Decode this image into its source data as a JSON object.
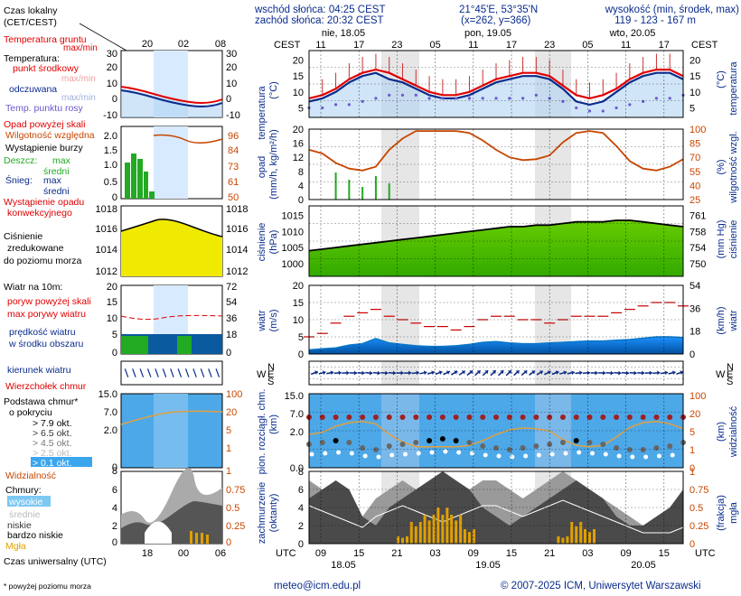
{
  "header": {
    "sunrise": "wschód słońca: 04:25 CEST",
    "sunset": "zachód słońca: 20:32 CEST",
    "coords": "21°45'E, 53°35'N",
    "grid": "(x=262,  y=366)",
    "altitude_title": "wysokość (min, środek, max)",
    "altitude_values": "119 - 123 - 167 m"
  },
  "legend": {
    "time_title": "Czas lokalny",
    "time_sub": "(CET/CEST)",
    "time_ticks": [
      "20",
      "02",
      "08"
    ],
    "utc_title": "Czas uniwersalny (UTC)",
    "utc_ticks": [
      "18",
      "00",
      "06"
    ],
    "temp_ground": "Temperatura gruntu",
    "temp_ground_sub": "max/min",
    "temp_title": "Temperatura:",
    "temp_mid": "punkt środkowy",
    "temp_mid_sub": "max/min",
    "temp_felt": "odczuwana",
    "temp_felt_sub": "max/min",
    "temp_dew": "Temp. punktu rosy",
    "temp_ticks": [
      "30",
      "20",
      "10",
      "0",
      "-10"
    ],
    "rain_over": "Opad powyżej skali",
    "humidity": "Wilgotność względna",
    "storm": "Wystąpienie burzy",
    "rain_title": "Deszcz:",
    "rain_max": "max",
    "rain_mean": "średni",
    "snow_title": "Śnieg:",
    "snow_max": "max",
    "snow_mean": "średni",
    "conv": "Wystąpienie opadu",
    "conv2": "konwekcyjnego",
    "precip_ticks": [
      "2.0",
      "1.5",
      "1.0",
      "0.5",
      "0"
    ],
    "hum_ticks": [
      "96",
      "84",
      "73",
      "61",
      "50"
    ],
    "pressure_title": "Ciśnienie",
    "pressure_sub1": "zredukowane",
    "pressure_sub2": "do poziomu morza",
    "pressure_ticks": [
      "1018",
      "1016",
      "1014",
      "1012"
    ],
    "wind_title": "Wiatr na 10m:",
    "wind_gust_over": "poryw powyżej skali",
    "wind_gust": "max porywy wiatru",
    "wind_speed": "prędkość wiatru",
    "wind_area": "w środku obszaru",
    "wind_ticks_l": [
      "20",
      "15",
      "10",
      "5",
      "0"
    ],
    "wind_ticks_r": [
      "72",
      "54",
      "36",
      "18",
      "0"
    ],
    "wind_dir": "kierunek wiatru",
    "vane": "Wierzchołek chmur",
    "cloud_base": "Podstawa chmur*",
    "cloud_base2": "o pokryciu",
    "okt79": "> 7.9 okt.",
    "okt65": "> 6.5 okt.",
    "okt45": "> 4.5 okt.",
    "okt25": "> 2.5 okt.",
    "okt01": "> 0.1 okt.",
    "visibility": "Widzialność",
    "base_ticks": [
      "15.0",
      "7.0",
      "2.0",
      "0"
    ],
    "vis_ticks": [
      "100",
      "20",
      "5",
      "1"
    ],
    "clouds_title": "Chmury:",
    "cloud_high": "wysokie",
    "cloud_mid": "średnie",
    "cloud_low": "niskie",
    "cloud_vlow": "bardzo niskie",
    "fog": "Mgła",
    "cloud_ticks": [
      "8",
      "6",
      "4",
      "2",
      "0"
    ],
    "fog_ticks": [
      "1",
      "0.75",
      "0.5",
      "0.25",
      "0"
    ],
    "footnote": "* powyżej poziomu morza"
  },
  "main": {
    "cest_label": "CEST",
    "utc_label": "UTC",
    "days_top": [
      "nie, 18.05",
      "pon, 19.05",
      "wto, 20.05"
    ],
    "hours_top": [
      "11",
      "17",
      "23",
      "05",
      "11",
      "17",
      "23",
      "05",
      "11",
      "17"
    ],
    "hours_bottom": [
      "09",
      "15",
      "21",
      "03",
      "09",
      "15",
      "21",
      "03",
      "09",
      "15"
    ],
    "days_bottom": [
      "18.05",
      "19.05",
      "20.05"
    ],
    "temp_axis": "temperatura",
    "temp_unit": "(°C)",
    "temp_ticks": [
      "20",
      "15",
      "10",
      "5"
    ],
    "precip_axis": "opad",
    "precip_unit": "(mm/h, kg/m²/h)",
    "precip_ticks": [
      "20",
      "16",
      "12",
      "8",
      "4",
      "0"
    ],
    "hum_axis": "wilgotność wzgl.",
    "hum_unit": "(%)",
    "hum_ticks": [
      "100",
      "85",
      "70",
      "55",
      "40",
      "25"
    ],
    "pres_axis": "ciśnienie",
    "pres_unit": "(hPa)",
    "pres_ticks": [
      "1015",
      "1010",
      "1005",
      "1000"
    ],
    "pres_ticks_r": [
      "761",
      "758",
      "754",
      "750"
    ],
    "pres_unit_r": "(mm Hg)",
    "wind_axis": "wiatr",
    "wind_unit": "(m/s)",
    "wind_ticks": [
      "20",
      "15",
      "10",
      "5",
      "0"
    ],
    "wind_ticks_r": [
      "54",
      "36",
      "18",
      "0"
    ],
    "wind_unit_r": "(km/h)",
    "compass": [
      "N",
      "W",
      "E",
      "S"
    ],
    "cloud_axis1": "pion. rozciągł. chm.",
    "cloud_axis2": "(km)",
    "base_ticks": [
      "15.0",
      "7.0",
      "2.0",
      "0.0"
    ],
    "vis_axis": "widzialność",
    "vis_unit": "(km)",
    "vis_ticks": [
      "100",
      "20",
      "5",
      "1",
      "0"
    ],
    "cc_axis1": "zachmurzenie",
    "cc_axis2": "(oktanty)",
    "cc_ticks": [
      "8",
      "6",
      "4",
      "2",
      "0"
    ],
    "fog_axis1": "mgła",
    "fog_axis2": "(frakcja)",
    "fog_ticks": [
      "1",
      "0.75",
      "0.5",
      "0.25",
      "0"
    ]
  },
  "footer": {
    "email": "meteo@icm.edu.pl",
    "copyright": "© 2007-2025 ICM, Uniwersytet Warszawski"
  },
  "colors": {
    "navy": "#0a2c8c",
    "orange": "#c84600",
    "red": "#e00000",
    "night": "#e0e0e0",
    "pressure": "#66cc00",
    "wind": "#0a78c8"
  },
  "chart_data": {
    "type": "line",
    "x_hours_utc_from_18_05_06": "3-hourly",
    "temperature": [
      8,
      9,
      11,
      14,
      16,
      17,
      16,
      14,
      12,
      10,
      9,
      9,
      10,
      12,
      14,
      15,
      16,
      16,
      15,
      12,
      9,
      8,
      9,
      11,
      14,
      16,
      17,
      17,
      15
    ],
    "temperature_felt": [
      7,
      8,
      10,
      13,
      15,
      16,
      14,
      13,
      11,
      9,
      8,
      8,
      9,
      11,
      13,
      14,
      15,
      15,
      14,
      11,
      7,
      6,
      7,
      10,
      13,
      15,
      16,
      16,
      14
    ],
    "dew_point": [
      5,
      5,
      6,
      6,
      7,
      8,
      9,
      9,
      9,
      8,
      8,
      8,
      8,
      8,
      8,
      8,
      8,
      9,
      8,
      7,
      5,
      4,
      4,
      5,
      6,
      7,
      8,
      8,
      9
    ],
    "humidity": [
      78,
      74,
      64,
      58,
      56,
      60,
      78,
      90,
      98,
      98,
      98,
      98,
      96,
      88,
      78,
      70,
      67,
      68,
      72,
      86,
      96,
      98,
      96,
      82,
      66,
      58,
      56,
      60,
      68
    ],
    "pressure": [
      1004,
      1004.5,
      1005,
      1005.5,
      1006,
      1006.5,
      1007,
      1007.5,
      1008,
      1008.5,
      1009,
      1009.5,
      1010,
      1010.5,
      1011,
      1011.5,
      1011.5,
      1012,
      1012,
      1012.5,
      1013,
      1013,
      1013,
      1013.5,
      1013.5,
      1013,
      1012.5,
      1012,
      1011.5
    ],
    "wind_speed": [
      1.2,
      1.5,
      1.8,
      2.6,
      3.0,
      4.5,
      3.2,
      2.8,
      2.4,
      2.2,
      2.2,
      2.4,
      2.8,
      3.4,
      3.6,
      3.2,
      3.0,
      3.0,
      3.2,
      3.4,
      3.6,
      3.8,
      3.8,
      4.0,
      4.2,
      4.6,
      5.0,
      5.0,
      4.8
    ],
    "wind_gust": [
      5,
      6,
      9,
      11,
      12,
      13,
      11,
      10,
      9,
      8,
      8,
      7,
      8,
      10,
      11,
      11,
      10,
      10,
      9,
      10,
      11,
      11,
      11,
      12,
      13,
      14,
      15,
      15,
      14
    ],
    "low_cloud": [
      5,
      6,
      7,
      6,
      3,
      2,
      4,
      5,
      6,
      7,
      8,
      7,
      6,
      4,
      3,
      2,
      3,
      4,
      5,
      6,
      7,
      6,
      5,
      3,
      2,
      2,
      3,
      4,
      6
    ],
    "high_cloud": [
      7,
      6,
      5,
      4,
      3,
      5,
      6,
      7,
      6,
      5,
      4,
      5,
      6,
      7,
      7,
      6,
      5,
      6,
      7,
      8,
      7,
      6,
      5,
      4,
      3,
      2,
      2,
      2,
      3
    ],
    "fog_fraction": [
      0,
      0,
      0,
      0,
      0,
      0,
      0,
      0.1,
      0.3,
      0.4,
      0.5,
      0.4,
      0.2,
      0,
      0,
      0,
      0,
      0,
      0,
      0.1,
      0.3,
      0.2,
      0,
      0,
      0,
      0,
      0,
      0,
      0
    ]
  }
}
